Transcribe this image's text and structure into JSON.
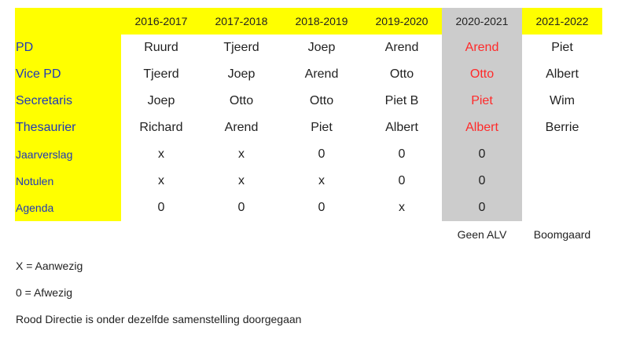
{
  "columns": [
    "2016-2017",
    "2017-2018",
    "2018-2019",
    "2019-2020",
    "2020-2021",
    "2021-2022"
  ],
  "rows": [
    {
      "label": "PD",
      "values": [
        "Ruurd",
        "Tjeerd",
        "Joep",
        "Arend",
        "Arend",
        "Piet"
      ]
    },
    {
      "label": "Vice PD",
      "values": [
        "Tjeerd",
        "Joep",
        "Arend",
        "Otto",
        "Otto",
        "Albert"
      ]
    },
    {
      "label": "Secretaris",
      "values": [
        "Joep",
        "Otto",
        "Otto",
        "Piet B",
        "Piet",
        "Wim"
      ]
    },
    {
      "label": "Thesaurier",
      "values": [
        "Richard",
        "Arend",
        "Piet",
        "Albert",
        "Albert",
        "Berrie"
      ]
    },
    {
      "label": "Jaarverslag",
      "values": [
        "x",
        "x",
        "0",
        "0",
        "0",
        ""
      ]
    },
    {
      "label": "Notulen",
      "values": [
        "x",
        "x",
        "x",
        "0",
        "0",
        ""
      ]
    },
    {
      "label": "Agenda",
      "values": [
        "0",
        "0",
        "0",
        "x",
        "0",
        ""
      ]
    }
  ],
  "notes": [
    "",
    "",
    "",
    "",
    "Geen ALV",
    "Boomgaard"
  ],
  "legend": {
    "present": "X = Aanwezig",
    "absent": "0 = Afwezig",
    "red_note": "Rood Directie is onder dezelfde samenstelling doorgegaan"
  },
  "colors": {
    "header_bg": "#ffff00",
    "label_text": "#1f39b8",
    "highlight_bg": "#cccccc",
    "highlight_text": "#ff2a2a"
  }
}
